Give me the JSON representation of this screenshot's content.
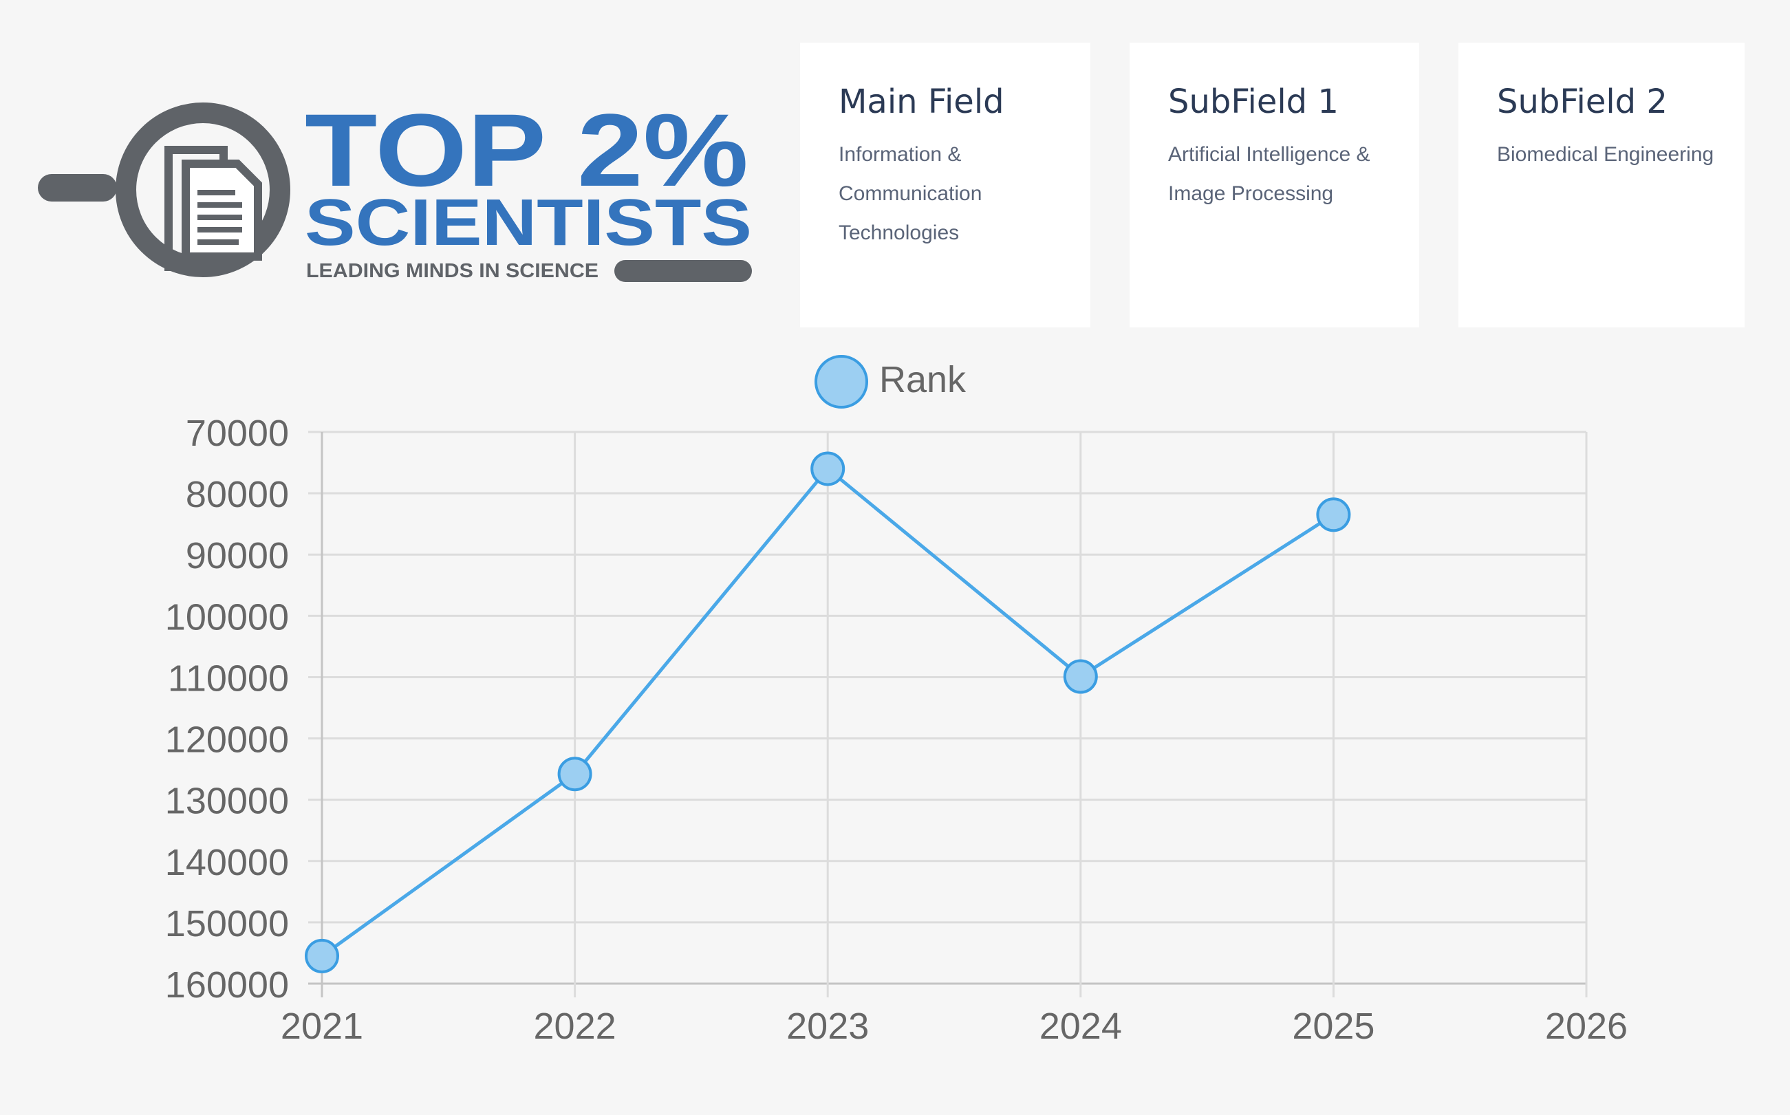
{
  "logo": {
    "line1": "TOP 2%",
    "line2": "SCIENTISTS",
    "tagline": "LEADING MINDS IN SCIENCE",
    "colors": {
      "blue": "#3474bd",
      "gray": "#5f6368"
    }
  },
  "cards": {
    "main": {
      "title": "Main Field",
      "text": "Information & Communication Technologies"
    },
    "sub1": {
      "title": "SubField 1",
      "text": "Artificial Intelligence & Image Processing"
    },
    "sub2": {
      "title": "SubField 2",
      "text": "Biomedical Engineering"
    }
  },
  "chart_data": {
    "type": "line",
    "legend": "Rank",
    "x": [
      2021,
      2022,
      2023,
      2024,
      2025
    ],
    "y": [
      155500,
      125800,
      76000,
      109900,
      83500
    ],
    "xticks": [
      "2021",
      "2022",
      "2023",
      "2024",
      "2025",
      "2026"
    ],
    "yticks": [
      "70000",
      "80000",
      "90000",
      "100000",
      "110000",
      "120000",
      "130000",
      "140000",
      "150000",
      "160000"
    ],
    "xlim": [
      2021,
      2026
    ],
    "ylim": [
      70000,
      160000
    ],
    "y_reversed": true,
    "grid": true,
    "legend_position": "top",
    "colors": {
      "line": "#4aa8e8",
      "point_fill": "#9ccff2",
      "point_stroke": "#3a9de2"
    }
  }
}
